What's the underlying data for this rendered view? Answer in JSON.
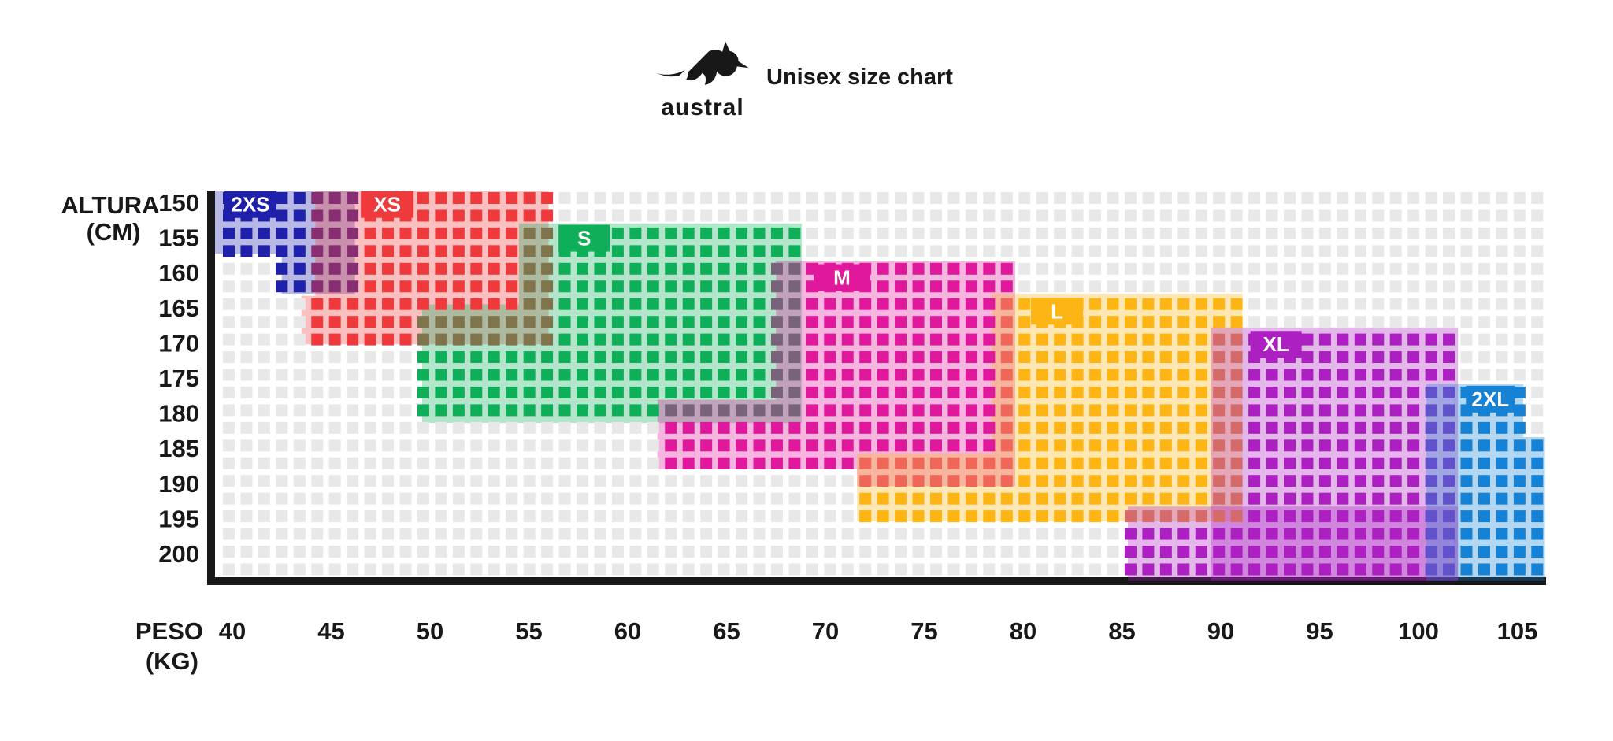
{
  "header": {
    "title": "Unisex size chart",
    "brand": "austral"
  },
  "chart_data": {
    "type": "heatmap",
    "title": "Unisex size chart",
    "xlabel": "PESO (KG)",
    "ylabel": "ALTURA (CM)",
    "xlabel_lines": [
      "PESO",
      "(KG)"
    ],
    "ylabel_lines": [
      "ALTURA",
      "(CM)"
    ],
    "x_ticks": [
      40,
      45,
      50,
      55,
      60,
      65,
      70,
      75,
      80,
      85,
      90,
      95,
      100,
      105
    ],
    "y_ticks": [
      150,
      155,
      160,
      165,
      170,
      175,
      180,
      185,
      190,
      195,
      200
    ],
    "x_range_kg": [
      39.1,
      106.4
    ],
    "y_range_cm": [
      148.4,
      203.9
    ],
    "grid": true,
    "empty_cell_color": "#e8e8e8",
    "axis_color": "#181818",
    "sizes": [
      {
        "label": "2XS",
        "color": "#1f21aa",
        "regions": [
          {
            "kg": [
              39.1,
              46.2
            ],
            "cm": [
              148.4,
              157.3
            ]
          },
          {
            "kg": [
              42.5,
              46.2
            ],
            "cm": [
              157.3,
              163.0
            ]
          }
        ],
        "chip": {
          "kg": 39.6,
          "cm": 148.4,
          "w": 66
        }
      },
      {
        "label": "XS",
        "color": "#ee3a3c",
        "regions": [
          {
            "kg": [
              44.2,
              56.0
            ],
            "cm": [
              148.4,
              163.3
            ]
          },
          {
            "kg": [
              43.5,
              56.0
            ],
            "cm": [
              163.3,
              170.2
            ]
          }
        ],
        "chip": {
          "kg": 46.5,
          "cm": 148.4,
          "w": 67
        }
      },
      {
        "label": "S",
        "color": "#0fae59",
        "regions": [
          {
            "kg": [
              54.5,
              68.8
            ],
            "cm": [
              153.0,
              164.5
            ]
          },
          {
            "kg": [
              49.6,
              68.8
            ],
            "cm": [
              164.5,
              181.4
            ]
          }
        ],
        "chip": {
          "kg": 56.5,
          "cm": 153.2,
          "w": 65
        }
      },
      {
        "label": "M",
        "color": "#e0189b",
        "regions": [
          {
            "kg": [
              67.5,
              79.6
            ],
            "cm": [
              158.4,
              178.1
            ]
          },
          {
            "kg": [
              61.5,
              79.6
            ],
            "cm": [
              178.1,
              188.0
            ]
          },
          {
            "kg": [
              71.6,
              79.6
            ],
            "cm": [
              188.0,
              190.4
            ]
          }
        ],
        "chip": {
          "kg": 69.4,
          "cm": 158.8,
          "w": 72
        }
      },
      {
        "label": "L",
        "color": "#fcb514",
        "regions": [
          {
            "kg": [
              78.4,
              91.1
            ],
            "cm": [
              163.0,
              185.7
            ]
          },
          {
            "kg": [
              71.6,
              91.1
            ],
            "cm": [
              185.7,
              195.4
            ]
          }
        ],
        "chip": {
          "kg": 80.4,
          "cm": 163.6,
          "w": 66
        }
      },
      {
        "label": "XL",
        "color": "#ac1fc0",
        "regions": [
          {
            "kg": [
              89.5,
              102.0
            ],
            "cm": [
              167.8,
              203.9
            ]
          },
          {
            "kg": [
              85.3,
              102.0
            ],
            "cm": [
              193.3,
              203.9
            ]
          }
        ],
        "chip": {
          "kg": 91.5,
          "cm": 168.3,
          "w": 65
        }
      },
      {
        "label": "2XL",
        "color": "#1682d5",
        "regions": [
          {
            "kg": [
              100.4,
              105.3
            ],
            "cm": [
              175.9,
              183.4
            ]
          },
          {
            "kg": [
              100.4,
              106.4
            ],
            "cm": [
              183.4,
              203.9
            ]
          }
        ],
        "chip": {
          "kg": 102.4,
          "cm": 176.1,
          "w": 62
        }
      }
    ]
  }
}
